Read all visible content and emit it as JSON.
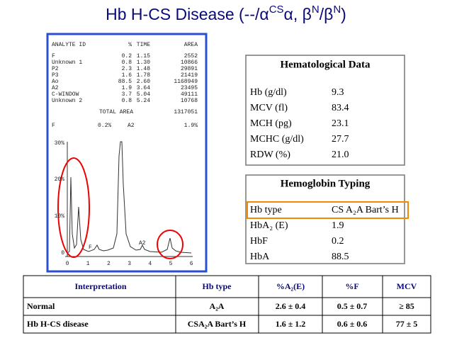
{
  "title_parts": [
    "Hb H-CS Disease (--/α",
    "CS",
    "α, β",
    "N",
    "/β",
    "N",
    ")"
  ],
  "printout": {
    "header": [
      "ANALYTE ID",
      "%",
      "TIME",
      "AREA"
    ],
    "rows": [
      [
        "F",
        "0.2",
        "1.15",
        "2552"
      ],
      [
        "Unknown  1",
        "0.8",
        "1.30",
        "10866"
      ],
      [
        "P2",
        "2.3",
        "1.48",
        "29891"
      ],
      [
        "P3",
        "1.6",
        "1.78",
        "21419"
      ],
      [
        "Ao",
        "88.5",
        "2.60",
        "1168949"
      ],
      [
        "A2",
        "1.9",
        "3.64",
        "23495"
      ],
      [
        "C-WINDOW",
        "3.7",
        "5.04",
        "49111"
      ],
      [
        "Unknown  2",
        "0.8",
        "5.24",
        "10768"
      ]
    ],
    "total": {
      "label": "TOTAL AREA",
      "value": "1317051"
    },
    "summary": [
      "F",
      "0.2%",
      "A2",
      "1.9%"
    ],
    "y_axis_labels": [
      "30%",
      "20%",
      "10%",
      "0"
    ],
    "x_axis_labels": [
      "0",
      "1",
      "2",
      "3",
      "4",
      "5",
      "6"
    ],
    "peak_labels": [
      "F",
      "A2"
    ]
  },
  "hematological_data": {
    "title": "Hematological Data",
    "rows": [
      [
        "Hb (g/dl)",
        "9.3"
      ],
      [
        "MCV (fl)",
        "83.4"
      ],
      [
        "MCH (pg)",
        "23.1"
      ],
      [
        "MCHC (g/dl)",
        "27.7"
      ],
      [
        "RDW (%)",
        "21.0"
      ]
    ]
  },
  "hemoglobin_typing": {
    "title": "Hemoglobin Typing",
    "rows": [
      [
        "Hb type",
        "CS A₂A Bart’s H"
      ],
      [
        "HbA₂ (E)",
        "1.9"
      ],
      [
        "HbF",
        "0.2"
      ],
      [
        "HbA",
        "88.5"
      ]
    ]
  },
  "comparison_table": {
    "header": [
      "Interpretation",
      "Hb type",
      "%A₂(E)",
      "%F",
      "MCV"
    ],
    "rows": [
      [
        "Normal",
        "A₂A",
        "2.6 ±  0.4",
        "0.5 ±  0.7",
        "≥ 85"
      ],
      [
        "Hb H-CS disease",
        "CSA₂A Bart’s H",
        "1.6 ± 1.2",
        "0.6 ± 0.6",
        "77 ± 5"
      ]
    ]
  }
}
